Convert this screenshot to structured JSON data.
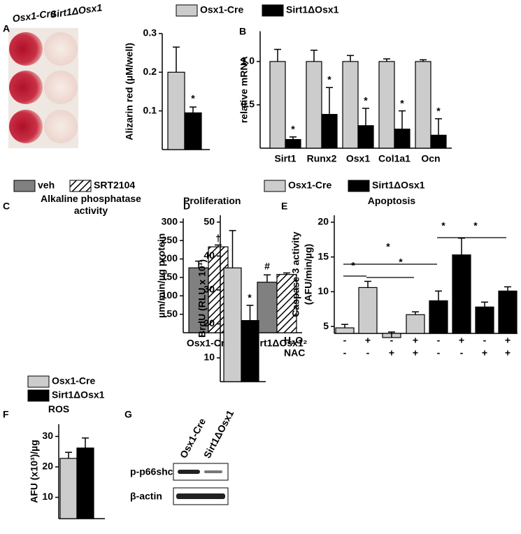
{
  "plate": {
    "label": "A",
    "column_labels": [
      "Osx1-Cre",
      "Sirt1ΔOsx1"
    ]
  },
  "chart_data": [
    {
      "type": "bar",
      "ylabel": "Alizarin red (µM/well)",
      "values": [
        0.2,
        0.095
      ],
      "errors": [
        0.065,
        0.015
      ],
      "colors": [
        "#cccccc",
        "#000000"
      ],
      "ylim": [
        0,
        0.3
      ],
      "yticks": [
        0.1,
        0.2,
        0.3
      ],
      "annotations": [
        "*"
      ]
    },
    {
      "type": "grouped-bar",
      "label": "B",
      "ylabel": "relative mRNA",
      "categories": [
        "Sirt1",
        "Runx2",
        "Osx1",
        "Col1a1",
        "Ocn"
      ],
      "series": [
        {
          "name": "Osx1-Cre",
          "color": "#cccccc",
          "values": [
            1.0,
            1.0,
            1.0,
            1.0,
            1.0
          ],
          "errors": [
            0.14,
            0.13,
            0.07,
            0.03,
            0.02
          ]
        },
        {
          "name": "Sirt1ΔOsx1",
          "color": "#000000",
          "values": [
            0.1,
            0.39,
            0.26,
            0.22,
            0.15
          ],
          "errors": [
            0.03,
            0.31,
            0.2,
            0.21,
            0.19
          ]
        }
      ],
      "ylim": [
        0,
        1.35
      ],
      "yticks": [
        0.5,
        {
          "value": 1,
          "label": "1.0"
        }
      ],
      "annotations": [
        "*",
        "*",
        "*",
        "*",
        "*"
      ]
    },
    {
      "type": "grouped-bar",
      "label": "C",
      "title": "Alkaline phosphatase activity",
      "ylabel": "µm/min/µg protein",
      "categories": [
        "Osx1-Cre",
        "Sirt1ΔOsx1"
      ],
      "series": [
        {
          "name": "veh",
          "color": "#808080",
          "values": [
            176,
            137
          ],
          "errors": [
            18,
            20
          ]
        },
        {
          "name": "SRT2104",
          "color": "#ffffff",
          "hatch": true,
          "values": [
            233,
            158
          ],
          "errors": [
            5,
            4
          ]
        }
      ],
      "ylim": [
        0,
        310
      ],
      "yticks": [
        50,
        100,
        150,
        200,
        250,
        300
      ],
      "annotations": [
        "†",
        "#"
      ]
    },
    {
      "type": "bar",
      "label": "D",
      "title": "Proliferation",
      "ylabel": "BrdU (RLU x 10³)",
      "values": [
        36.5,
        21
      ],
      "errors": [
        11,
        4.5
      ],
      "colors": [
        "#cccccc",
        "#000000"
      ],
      "ylim": [
        3,
        52
      ],
      "yticks": [
        10,
        20,
        30,
        40,
        50
      ],
      "annotations": [
        "*"
      ]
    },
    {
      "type": "sequential-bar",
      "label": "E",
      "title": "Apoptosis",
      "ylabel": [
        "Caspase-3 activity",
        "(AFU/min/µg)"
      ],
      "series": [
        {
          "name": "Osx1-Cre",
          "color": "#cccccc",
          "values": [
            4.8,
            10.6,
            3.4,
            6.7
          ],
          "errors": [
            0.5,
            0.9,
            0.8,
            0.4
          ]
        },
        {
          "name": "Sirt1ΔOsx1",
          "color": "#000000",
          "values": [
            8.7,
            15.3,
            7.8,
            10.1
          ],
          "errors": [
            1.4,
            2.4,
            0.7,
            0.6
          ]
        }
      ],
      "rows": [
        {
          "name": "H₂O₂",
          "values": [
            "-",
            "+",
            "-",
            "+",
            "-",
            "+",
            "-",
            "+"
          ]
        },
        {
          "name": "NAC",
          "values": [
            "-",
            "-",
            "+",
            "+",
            "-",
            "-",
            "+",
            "+"
          ]
        }
      ],
      "ylim": [
        4,
        21
      ],
      "yticks": [
        5,
        10,
        15,
        20
      ],
      "annotations": [
        "*",
        "*",
        "*",
        "*",
        "*"
      ]
    },
    {
      "type": "grouped-bar",
      "label": "F",
      "title": "ROS",
      "ylabel": "AFU (x10³)/µg",
      "series": [
        {
          "name": "Osx1-Cre",
          "color": "#cccccc",
          "values": [
            22.8
          ],
          "errors": [
            2
          ]
        },
        {
          "name": "Sirt1ΔOsx1",
          "color": "#000000",
          "values": [
            26.2
          ],
          "errors": [
            3.3
          ]
        }
      ],
      "ylim": [
        3,
        34
      ],
      "yticks": [
        10,
        20,
        30
      ]
    }
  ],
  "blot": {
    "label": "G",
    "column_labels": [
      "Osx1-Cre",
      "Sirt1ΔOsx1"
    ],
    "row_labels": [
      "p-p66shc",
      "β-actin"
    ]
  }
}
